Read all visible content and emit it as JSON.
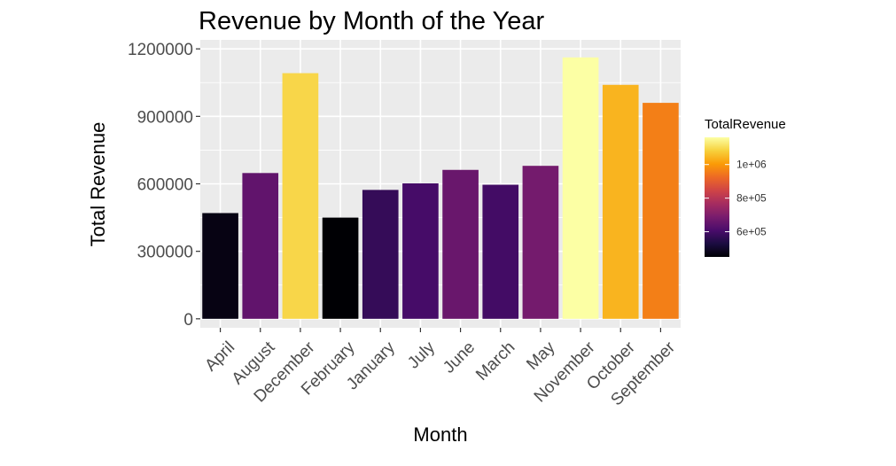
{
  "chart_data": {
    "type": "bar",
    "title": "Revenue by Month of the Year",
    "xlabel": "Month",
    "ylabel": "Total Revenue",
    "categories": [
      "April",
      "August",
      "December",
      "February",
      "January",
      "July",
      "June",
      "March",
      "May",
      "November",
      "October",
      "September"
    ],
    "values": [
      470000,
      648000,
      1092000,
      450000,
      573000,
      602000,
      662000,
      596000,
      680000,
      1162000,
      1040000,
      960000
    ],
    "ylim": [
      -40000,
      1240000
    ],
    "yticks": [
      0,
      300000,
      600000,
      900000,
      1200000
    ],
    "ytick_labels": [
      "0",
      "300000",
      "600000",
      "900000",
      "1200000"
    ],
    "grid": true,
    "panel_background": "#ebebeb",
    "legend": {
      "title": "TotalRevenue",
      "placement": "right",
      "range": [
        450000,
        1162000
      ],
      "breaks": [
        600000,
        800000,
        1000000
      ],
      "labels": [
        "6e+05",
        "8e+05",
        "1e+06"
      ],
      "palette": "inferno"
    }
  }
}
